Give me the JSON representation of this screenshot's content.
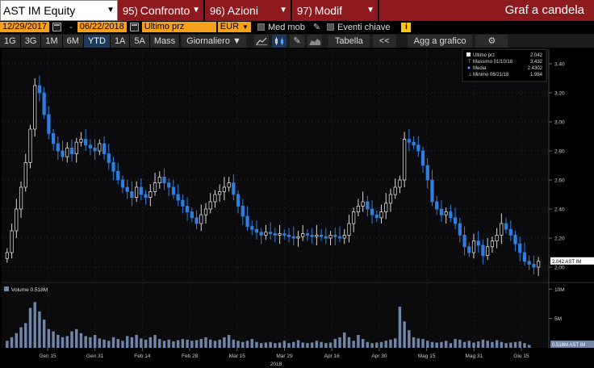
{
  "header": {
    "ticker": "AST IM Equity",
    "buttons": [
      {
        "num": "95)",
        "label": "Confronto"
      },
      {
        "num": "96)",
        "label": "Azioni"
      },
      {
        "num": "97)",
        "label": "Modif"
      }
    ],
    "title": "Graf a candela"
  },
  "controls": {
    "start_date": "12/29/2017",
    "end_date": "06/22/2018",
    "separator": "-",
    "price_field": "Ultimo prz",
    "currency": "EUR",
    "moving_avg_label": "Med mob",
    "key_events_label": "Eventi chiave",
    "info_label": "i"
  },
  "toolbar": {
    "periods": [
      "1G",
      "3G",
      "1M",
      "6M",
      "YTD",
      "1A",
      "5A",
      "Mass"
    ],
    "active_period": "YTD",
    "frequency": "Giornaliero",
    "table_label": "Tabella",
    "collapse_label": "<<",
    "add_chart_label": "Agg a grafico",
    "icons": [
      "line-chart-icon",
      "candlestick-icon",
      "pencil-icon",
      "gear-icon"
    ]
  },
  "legend": {
    "rows": [
      {
        "label": "Ultimo prz",
        "value": "2.042"
      },
      {
        "label": "Massimo 01/10/18",
        "value": "3.432"
      },
      {
        "label": "Media",
        "value": "2.4302"
      },
      {
        "label": "Minimo 06/21/18",
        "value": "1.984"
      }
    ]
  },
  "volume_legend": "Volume 0.518M",
  "last_price_tag": "2.042 AST IM",
  "last_volume_tag": "0.518M AST IM",
  "colors": {
    "up": "#d8d8d8",
    "down": "#2d7fe0",
    "header_red": "#8c1a1f",
    "date_orange": "#f7a01b",
    "volume": "#6f86a8"
  },
  "chart_data": {
    "type": "candlestick",
    "x_ticks": [
      "Gen 15",
      "Gen 31",
      "Feb 14",
      "Feb 28",
      "Mar 15",
      "Mar 29",
      "Apr 16",
      "Apr 30",
      "Mag 15",
      "Mag 31",
      "Giu 15"
    ],
    "year_label": "2018",
    "price_ticks": [
      "3.40",
      "3.20",
      "3.00",
      "2.80",
      "2.60",
      "2.40",
      "2.20",
      "2.00"
    ],
    "price_ylim": [
      1.9,
      3.5
    ],
    "volume_ticks": [
      "10M",
      "5M"
    ],
    "volume_ylim": [
      0,
      11
    ],
    "close": [
      2.1,
      2.25,
      2.4,
      2.55,
      2.72,
      2.95,
      3.25,
      3.2,
      3.05,
      2.92,
      2.85,
      2.8,
      2.76,
      2.82,
      2.78,
      2.86,
      2.88,
      2.84,
      2.82,
      2.8,
      2.85,
      2.78,
      2.72,
      2.66,
      2.6,
      2.55,
      2.52,
      2.48,
      2.55,
      2.5,
      2.48,
      2.52,
      2.58,
      2.62,
      2.58,
      2.55,
      2.5,
      2.46,
      2.42,
      2.38,
      2.34,
      2.3,
      2.36,
      2.4,
      2.45,
      2.5,
      2.52,
      2.55,
      2.58,
      2.5,
      2.42,
      2.35,
      2.28,
      2.26,
      2.24,
      2.22,
      2.24,
      2.23,
      2.22,
      2.23,
      2.22,
      2.21,
      2.2,
      2.21,
      2.23,
      2.22,
      2.21,
      2.22,
      2.21,
      2.2,
      2.22,
      2.21,
      2.2,
      2.22,
      2.3,
      2.38,
      2.42,
      2.45,
      2.4,
      2.36,
      2.34,
      2.38,
      2.44,
      2.5,
      2.55,
      2.6,
      2.88,
      2.86,
      2.84,
      2.8,
      2.7,
      2.6,
      2.45,
      2.4,
      2.36,
      2.38,
      2.34,
      2.3,
      2.22,
      2.14,
      2.1,
      2.18,
      2.15,
      2.08,
      2.14,
      2.18,
      2.22,
      2.3,
      2.26,
      2.22,
      2.16,
      2.1,
      2.04,
      2.02,
      2.0,
      2.04
    ],
    "volume_M": [
      1.2,
      1.8,
      2.5,
      3.5,
      4.2,
      6.8,
      7.8,
      6.2,
      4.8,
      3.2,
      2.8,
      2.2,
      1.8,
      2.0,
      2.8,
      3.2,
      2.5,
      2.0,
      1.8,
      2.2,
      1.6,
      1.4,
      1.2,
      1.8,
      1.5,
      1.2,
      2.0,
      1.8,
      2.2,
      1.6,
      1.4,
      1.8,
      2.2,
      1.5,
      1.2,
      1.4,
      1.1,
      1.3,
      1.5,
      1.4,
      1.2,
      1.3,
      1.5,
      1.8,
      1.4,
      1.2,
      1.4,
      1.8,
      2.2,
      1.4,
      1.2,
      1.0,
      1.2,
      1.5,
      1.0,
      0.8,
      0.9,
      1.0,
      0.8,
      0.9,
      1.2,
      0.8,
      1.0,
      1.3,
      0.9,
      0.8,
      0.9,
      1.2,
      1.0,
      0.8,
      0.9,
      1.5,
      1.8,
      2.6,
      1.8,
      1.2,
      2.2,
      1.5,
      1.0,
      0.8,
      0.9,
      1.0,
      1.2,
      1.4,
      1.6,
      7.0,
      4.5,
      3.0,
      1.8,
      1.6,
      1.5,
      1.2,
      1.0,
      0.9,
      1.0,
      1.2,
      0.8,
      1.5,
      1.4,
      1.0,
      1.2,
      0.9,
      1.1,
      1.4,
      1.2,
      1.0,
      1.3,
      1.0,
      0.8,
      0.9,
      1.0,
      1.1,
      0.8,
      0.5
    ]
  }
}
